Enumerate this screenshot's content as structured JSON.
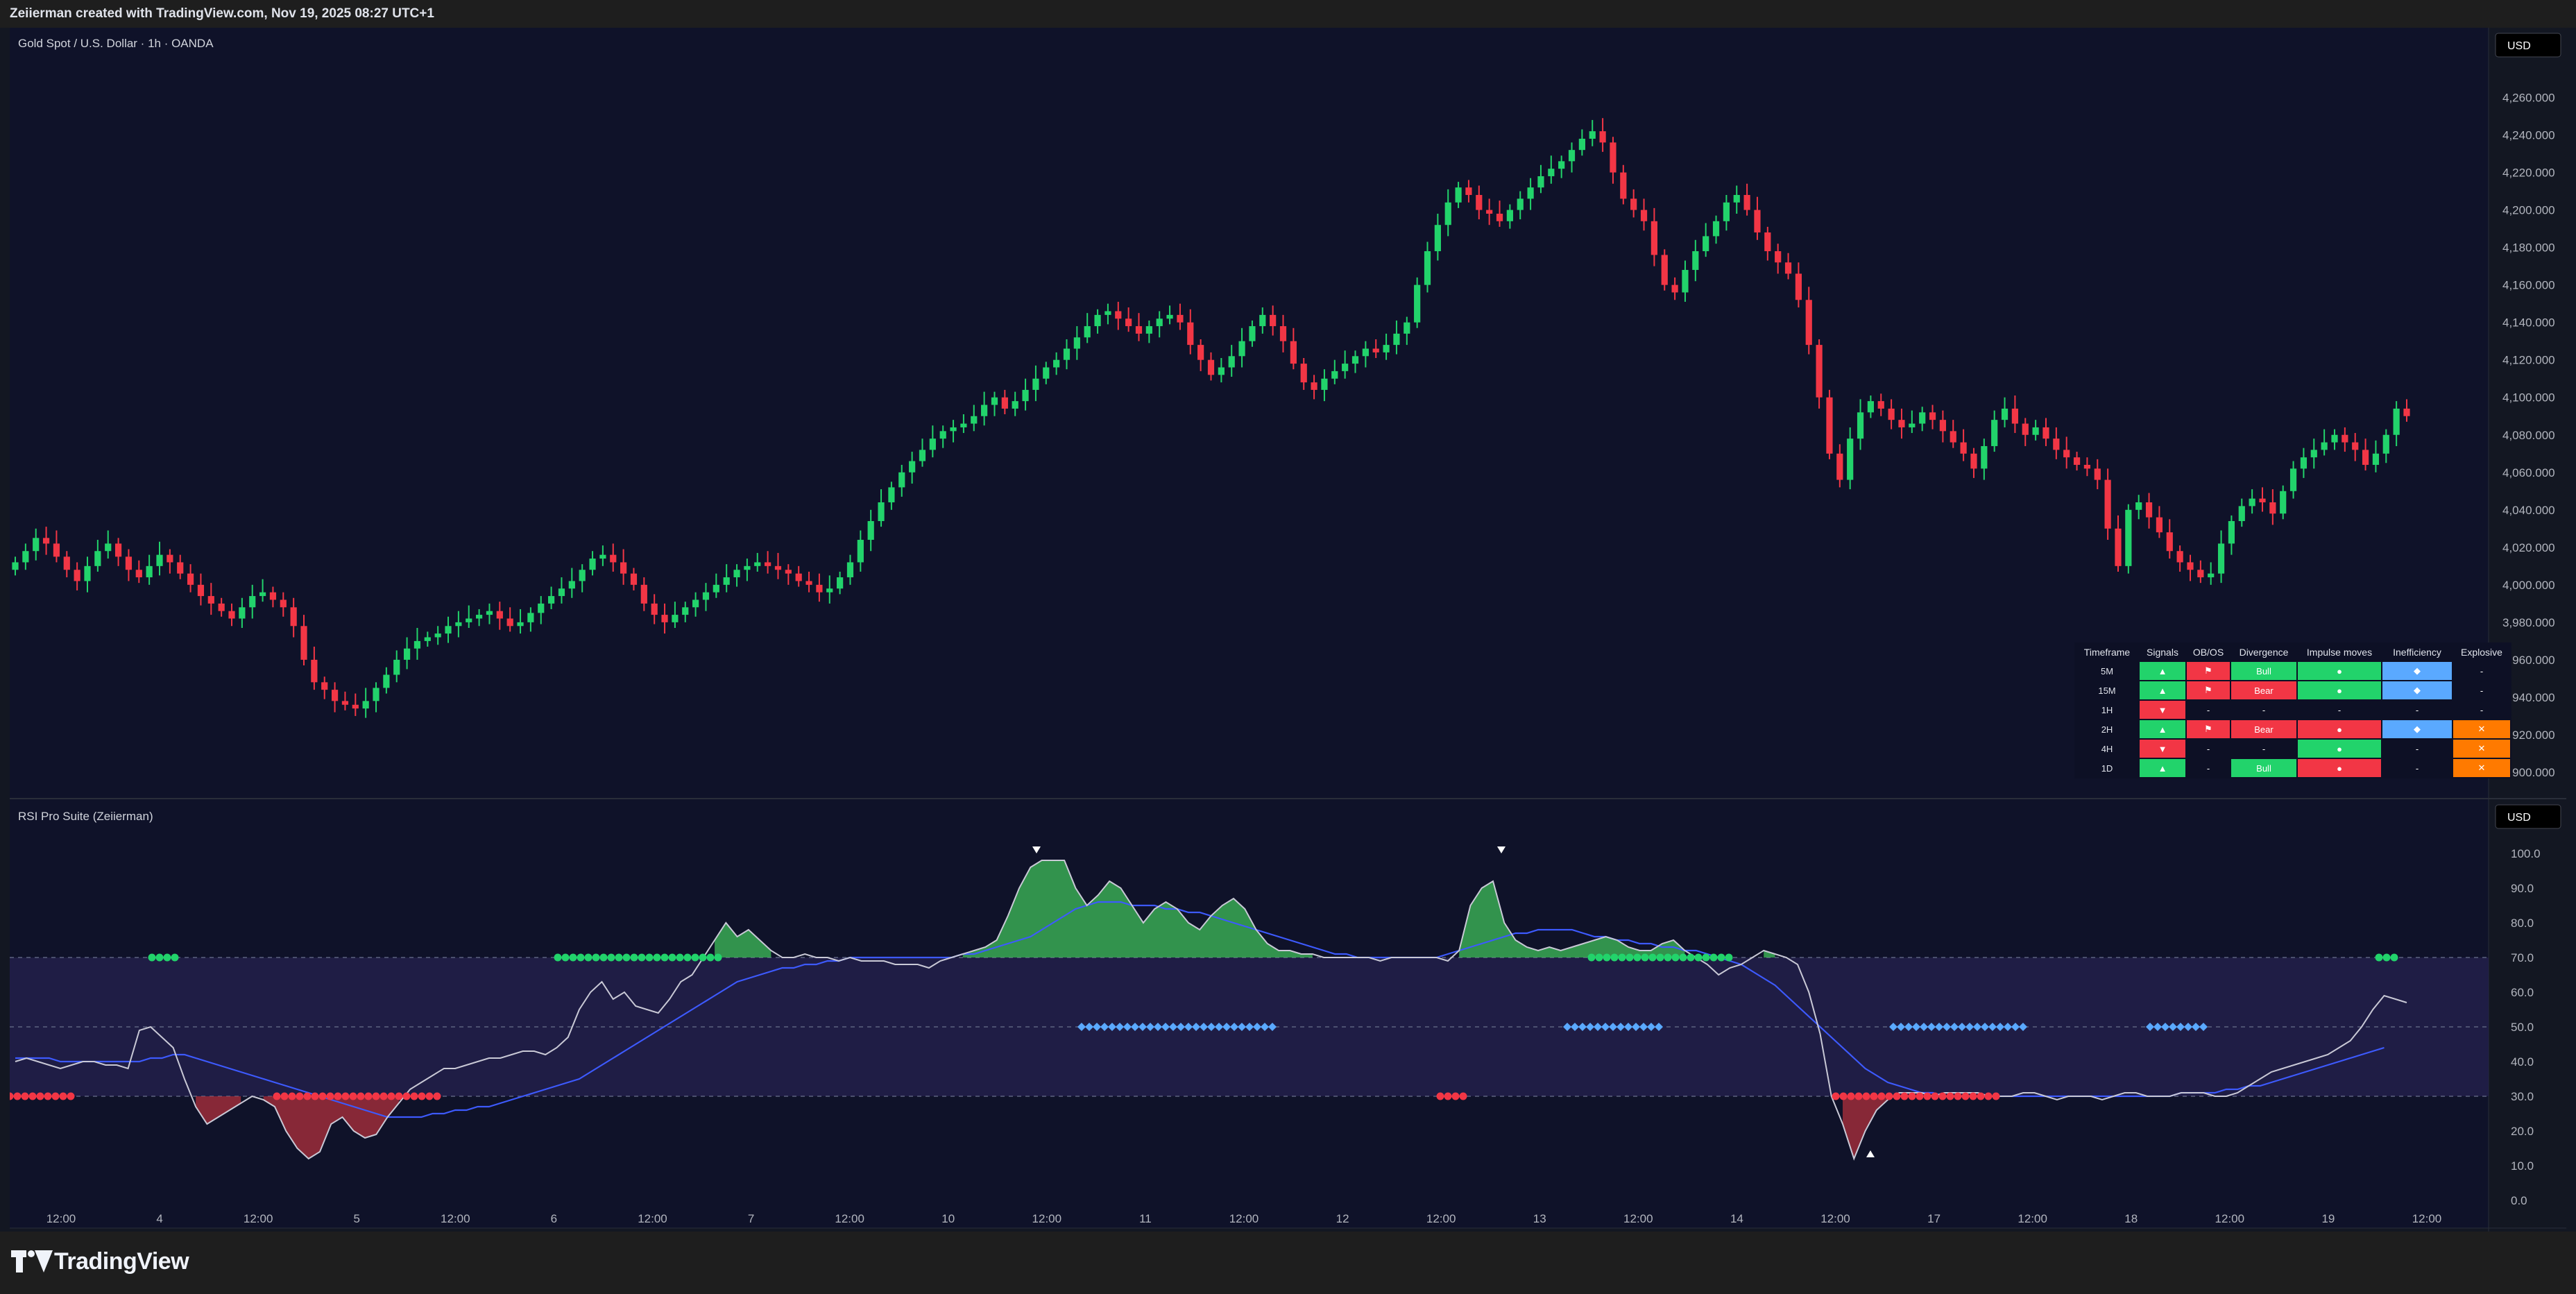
{
  "header": {
    "attribution": "Zeiierman created with TradingView.com, Nov 19, 2025 08:27 UTC+1"
  },
  "main_pane": {
    "title": "Gold Spot / U.S. Dollar · 1h · OANDA",
    "currency": "USD",
    "y_ticks": [
      "4,260.000",
      "4,240.000",
      "4,220.000",
      "4,200.000",
      "4,180.000",
      "4,160.000",
      "4,140.000",
      "4,120.000",
      "4,100.000",
      "4,080.000",
      "4,060.000",
      "4,040.000",
      "4,020.000",
      "4,000.000",
      "3,980.000",
      "3,960.000",
      "3,940.000",
      "3,920.000",
      "3,900.000"
    ]
  },
  "indicator_pane": {
    "title": "RSI Pro Suite (Zeiierman)",
    "currency": "USD",
    "y_ticks": [
      "100.0",
      "90.0",
      "80.0",
      "70.0",
      "60.0",
      "50.0",
      "40.0",
      "30.0",
      "20.0",
      "10.0",
      "0.0"
    ]
  },
  "x_axis": {
    "labels": [
      "12:00",
      "4",
      "12:00",
      "5",
      "12:00",
      "6",
      "12:00",
      "7",
      "12:00",
      "10",
      "12:00",
      "11",
      "12:00",
      "12",
      "12:00",
      "13",
      "12:00",
      "14",
      "12:00",
      "17",
      "12:00",
      "18",
      "12:00",
      "19",
      "12:00"
    ]
  },
  "table": {
    "headers": [
      "Timeframe",
      "Signals",
      "OB/OS",
      "Divergence",
      "Impulse moves",
      "Inefficiency",
      "Explosive"
    ],
    "rows": [
      {
        "tf": "5M",
        "signals": "▲",
        "obos": "⚑",
        "divergence": "Bull",
        "impulse": "●",
        "ineff": "◆",
        "explosive": "-"
      },
      {
        "tf": "15M",
        "signals": "▲",
        "obos": "⚑",
        "divergence": "Bear",
        "impulse": "●",
        "ineff": "◆",
        "explosive": "-"
      },
      {
        "tf": "1H",
        "signals": "▼",
        "obos": "-",
        "divergence": "-",
        "impulse": "-",
        "ineff": "-",
        "explosive": "-"
      },
      {
        "tf": "2H",
        "signals": "▲",
        "obos": "⚑",
        "divergence": "Bear",
        "impulse": "●",
        "ineff": "◆",
        "explosive": "✕"
      },
      {
        "tf": "4H",
        "signals": "▼",
        "obos": "-",
        "divergence": "-",
        "impulse": "●",
        "ineff": "-",
        "explosive": "✕"
      },
      {
        "tf": "1D",
        "signals": "▲",
        "obos": "-",
        "divergence": "Bull",
        "impulse": "●",
        "ineff": "-",
        "explosive": "✕"
      }
    ]
  },
  "colors": {
    "bull": "#22d36b",
    "bear": "#f23645",
    "rsi_line": "#c9c9d6",
    "ma_line": "#3d5afe",
    "inefficiency": "#5aa9ff",
    "explosive": "#ff7a00",
    "ob_fill": "#3fbf5a",
    "os_fill": "#b0303c"
  },
  "footer": {
    "brand": "TradingView"
  },
  "chart_data": [
    {
      "type": "candlestick",
      "title": "Gold Spot / U.S. Dollar · 1h · OANDA",
      "ylim": [
        3890,
        4275
      ],
      "close_path": [
        4012,
        4018,
        4025,
        4022,
        4015,
        4008,
        4002,
        4010,
        4018,
        4022,
        4015,
        4008,
        4004,
        4010,
        4016,
        4012,
        4006,
        4000,
        3994,
        3990,
        3986,
        3982,
        3988,
        3994,
        3996,
        3992,
        3988,
        3978,
        3960,
        3948,
        3944,
        3938,
        3936,
        3934,
        3938,
        3945,
        3952,
        3960,
        3966,
        3970,
        3972,
        3974,
        3978,
        3980,
        3982,
        3984,
        3986,
        3982,
        3978,
        3980,
        3985,
        3990,
        3994,
        3998,
        4002,
        4008,
        4014,
        4016,
        4012,
        4006,
        4000,
        3990,
        3984,
        3980,
        3984,
        3988,
        3992,
        3996,
        4000,
        4004,
        4008,
        4010,
        4012,
        4010,
        4008,
        4006,
        4002,
        4000,
        3996,
        3998,
        4004,
        4012,
        4024,
        4034,
        4044,
        4052,
        4060,
        4066,
        4072,
        4078,
        4082,
        4084,
        4086,
        4090,
        4096,
        4100,
        4094,
        4098,
        4104,
        4110,
        4116,
        4120,
        4126,
        4132,
        4138,
        4144,
        4146,
        4142,
        4138,
        4134,
        4138,
        4142,
        4144,
        4140,
        4128,
        4120,
        4112,
        4116,
        4122,
        4130,
        4138,
        4144,
        4138,
        4130,
        4118,
        4108,
        4104,
        4110,
        4114,
        4118,
        4122,
        4126,
        4124,
        4128,
        4134,
        4140,
        4160,
        4178,
        4192,
        4204,
        4212,
        4208,
        4200,
        4198,
        4194,
        4200,
        4206,
        4212,
        4218,
        4222,
        4226,
        4232,
        4238,
        4242,
        4236,
        4220,
        4206,
        4200,
        4194,
        4176,
        4160,
        4156,
        4168,
        4178,
        4186,
        4194,
        4204,
        4208,
        4200,
        4188,
        4178,
        4172,
        4166,
        4152,
        4128,
        4100,
        4070,
        4056,
        4078,
        4092,
        4098,
        4094,
        4088,
        4084,
        4086,
        4092,
        4088,
        4082,
        4076,
        4070,
        4062,
        4074,
        4088,
        4094,
        4086,
        4080,
        4084,
        4078,
        4072,
        4068,
        4064,
        4062,
        4056,
        4030,
        4010,
        4040,
        4044,
        4036,
        4028,
        4018,
        4012,
        4008,
        4004,
        4006,
        4022,
        4034,
        4042,
        4046,
        4044,
        4038,
        4050,
        4062,
        4068,
        4072,
        4076,
        4080,
        4076,
        4072,
        4064,
        4070,
        4080,
        4094,
        4090
      ]
    },
    {
      "type": "line",
      "title": "RSI Pro Suite (Zeiierman)",
      "ylim": [
        0,
        100
      ],
      "bands": {
        "overbought": 70,
        "mid": 50,
        "oversold": 30
      },
      "series": [
        {
          "values": [
            40,
            41,
            40,
            39,
            38,
            39,
            40,
            40,
            39,
            39,
            38,
            49,
            50,
            47,
            44,
            35,
            27,
            22,
            24,
            26,
            28,
            30,
            29,
            27,
            20,
            15,
            12,
            14,
            22,
            24,
            20,
            18,
            19,
            24,
            28,
            32,
            34,
            36,
            38,
            38,
            39,
            40,
            41,
            41,
            42,
            43,
            43,
            42,
            44,
            47,
            55,
            60,
            63,
            58,
            60,
            56,
            55,
            54,
            58,
            63,
            65,
            70,
            75,
            80,
            76,
            78,
            75,
            72,
            70,
            70,
            71,
            70,
            70,
            69,
            70,
            69,
            69,
            69,
            68,
            68,
            68,
            67,
            69,
            70,
            71,
            72,
            73,
            75,
            82,
            90,
            96,
            98,
            98,
            98,
            90,
            85,
            88,
            92,
            90,
            85,
            80,
            84,
            86,
            84,
            80,
            78,
            82,
            85,
            87,
            84,
            78,
            74,
            72,
            72,
            71,
            71,
            70,
            70,
            70,
            70,
            70,
            69,
            70,
            70,
            70,
            70,
            70,
            69,
            72,
            85,
            90,
            92,
            80,
            75,
            73,
            72,
            73,
            72,
            73,
            74,
            75,
            76,
            75,
            73,
            72,
            72,
            74,
            75,
            72,
            70,
            68,
            65,
            67,
            68,
            70,
            72,
            71,
            70,
            68,
            60,
            48,
            30,
            22,
            12,
            20,
            26,
            29,
            31,
            31,
            31,
            30,
            31,
            31,
            31,
            31,
            30,
            30,
            30,
            31,
            31,
            30,
            29,
            30,
            30,
            30,
            29,
            30,
            31,
            31,
            30,
            30,
            30,
            31,
            31,
            31,
            30,
            30,
            31,
            33,
            35,
            37,
            38,
            39,
            40,
            41,
            42,
            44,
            46,
            50,
            55,
            59,
            58,
            57
          ]
        },
        {
          "values": [
            41,
            41,
            41,
            41,
            40,
            40,
            40,
            40,
            40,
            40,
            40,
            40,
            41,
            41,
            42,
            42,
            41,
            40,
            39,
            38,
            37,
            36,
            35,
            34,
            33,
            32,
            31,
            30,
            29,
            28,
            27,
            26,
            25,
            24,
            24,
            24,
            24,
            25,
            25,
            26,
            26,
            27,
            27,
            28,
            29,
            30,
            31,
            32,
            33,
            34,
            35,
            37,
            39,
            41,
            43,
            45,
            47,
            49,
            51,
            53,
            55,
            57,
            59,
            61,
            63,
            64,
            65,
            66,
            67,
            67,
            68,
            68,
            69,
            69,
            70,
            70,
            70,
            70,
            70,
            70,
            70,
            70,
            70,
            70,
            71,
            71,
            72,
            73,
            74,
            75,
            76,
            78,
            80,
            82,
            84,
            85,
            86,
            86,
            86,
            85,
            85,
            85,
            84,
            84,
            83,
            83,
            82,
            81,
            80,
            79,
            78,
            77,
            76,
            75,
            74,
            73,
            72,
            71,
            71,
            70,
            70,
            70,
            70,
            70,
            70,
            70,
            70,
            71,
            72,
            73,
            74,
            75,
            76,
            77,
            77,
            78,
            78,
            78,
            78,
            77,
            76,
            76,
            75,
            75,
            74,
            74,
            73,
            73,
            72,
            72,
            71,
            70,
            69,
            68,
            66,
            64,
            62,
            59,
            56,
            53,
            50,
            47,
            44,
            41,
            38,
            36,
            34,
            33,
            32,
            31,
            31,
            30,
            30,
            30,
            30,
            30,
            30,
            30,
            30,
            30,
            30,
            30,
            30,
            30,
            30,
            30,
            30,
            30,
            30,
            30,
            30,
            30,
            31,
            31,
            31,
            31,
            32,
            32,
            33,
            33,
            34,
            35,
            36,
            37,
            38,
            39,
            40,
            41,
            42,
            43,
            44
          ]
        }
      ]
    }
  ]
}
